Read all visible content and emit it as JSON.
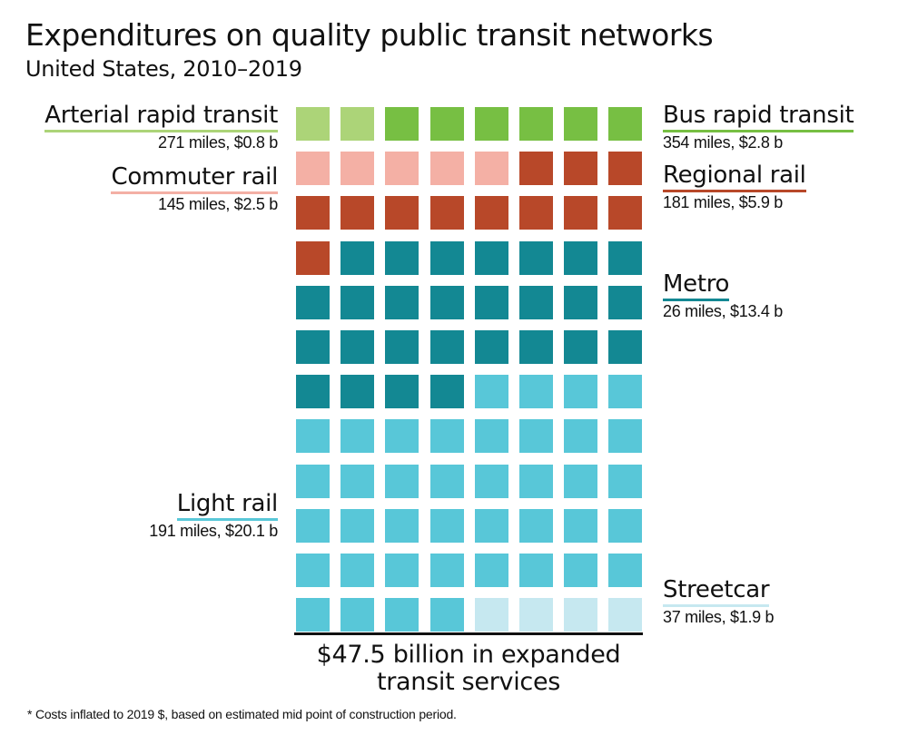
{
  "title": "Expenditures on quality public transit networks",
  "subtitle": "United States, 2010–2019",
  "total_label_line1": "$47.5 billion in expanded",
  "total_label_line2": "transit services",
  "footnote": "* Costs inflated to 2019 $, based on estimated mid point of construction period.",
  "chart_data": {
    "type": "waffle",
    "columns": 8,
    "rows": 12,
    "total_billion": 47.5,
    "categories": [
      {
        "name": "Arterial rapid transit",
        "detail": "271 miles, $0.8 b",
        "miles": 271,
        "billion": 0.8,
        "squares": 2,
        "color": "#acd478",
        "side": "left"
      },
      {
        "name": "Bus rapid transit",
        "detail": "354 miles, $2.8 b",
        "miles": 354,
        "billion": 2.8,
        "squares": 6,
        "color": "#77bf43",
        "side": "right"
      },
      {
        "name": "Commuter rail",
        "detail": "145 miles, $2.5 b",
        "miles": 145,
        "billion": 2.5,
        "squares": 5,
        "color": "#f4b0a5",
        "side": "left"
      },
      {
        "name": "Regional rail",
        "detail": "181 miles, $5.9 b",
        "miles": 181,
        "billion": 5.9,
        "squares": 12,
        "color": "#b84829",
        "side": "right"
      },
      {
        "name": "Metro",
        "detail": "26 miles, $13.4 b",
        "miles": 26,
        "billion": 13.4,
        "squares": 27,
        "color": "#138893",
        "side": "right"
      },
      {
        "name": "Light rail",
        "detail": "191 miles, $20.1 b",
        "miles": 191,
        "billion": 20.1,
        "squares": 40,
        "color": "#58c7d8",
        "side": "left"
      },
      {
        "name": "Streetcar",
        "detail": "37 miles, $1.9 b",
        "miles": 37,
        "billion": 1.9,
        "squares": 4,
        "color": "#c6e8f0",
        "side": "right"
      }
    ]
  }
}
